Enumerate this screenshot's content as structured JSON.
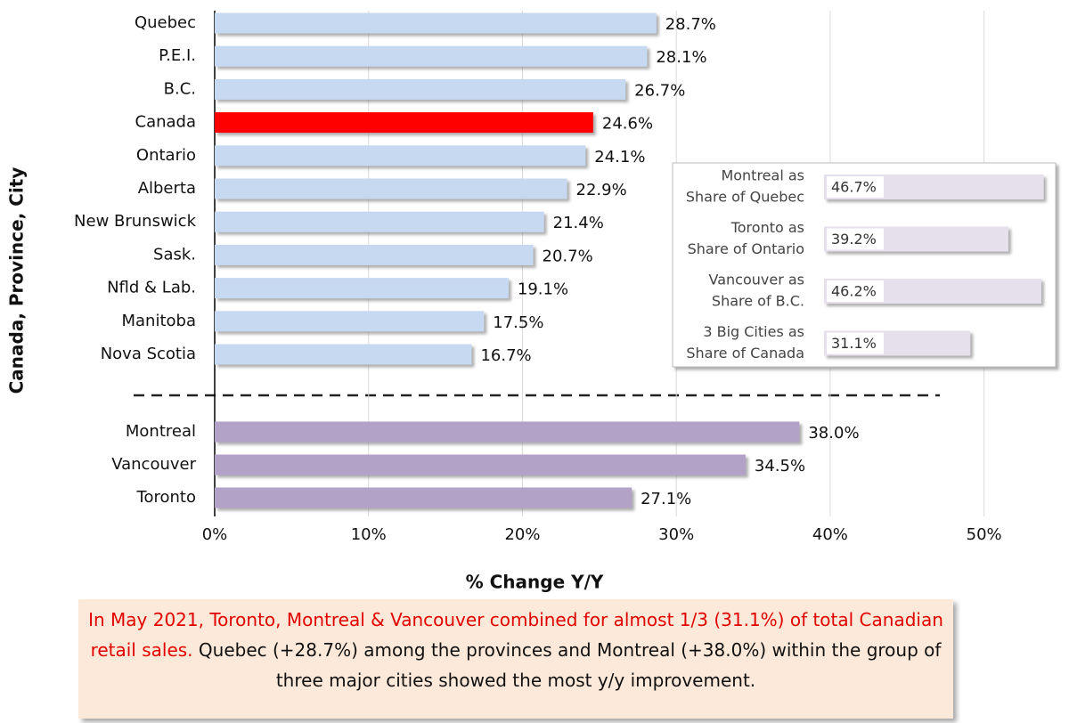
{
  "chart_data": [
    {
      "type": "bar",
      "y_label": "Canada, Province, City",
      "x_label": "% Change Y/Y",
      "categories": [
        "Quebec",
        "P.E.I.",
        "B.C.",
        "Canada",
        "Ontario",
        "Alberta",
        "New Brunswick",
        "Sask.",
        "Nfld & Lab.",
        "Manitoba",
        "Nova Scotia"
      ],
      "values": [
        28.7,
        28.1,
        26.7,
        24.6,
        24.1,
        22.9,
        21.4,
        20.7,
        19.1,
        17.5,
        16.7
      ],
      "value_labels": [
        "28.7%",
        "28.1%",
        "26.7%",
        "24.6%",
        "24.1%",
        "22.9%",
        "21.4%",
        "20.7%",
        "19.1%",
        "17.5%",
        "16.7%"
      ],
      "colors": [
        "#c6d9f1",
        "#c6d9f1",
        "#c6d9f1",
        "#ff0000",
        "#c6d9f1",
        "#c6d9f1",
        "#c6d9f1",
        "#c6d9f1",
        "#c6d9f1",
        "#c6d9f1",
        "#c6d9f1"
      ],
      "xlim": [
        0,
        55
      ],
      "xticks": [
        {
          "value": 0,
          "label": "0%"
        },
        {
          "value": 10,
          "label": "10%"
        },
        {
          "value": 20,
          "label": "20%"
        },
        {
          "value": 30,
          "label": "30%"
        },
        {
          "value": 40,
          "label": "40%"
        },
        {
          "value": 50,
          "label": "50%"
        }
      ],
      "grid": true
    },
    {
      "type": "bar",
      "categories": [
        "Montreal",
        "Vancouver",
        "Toronto"
      ],
      "values": [
        38.0,
        34.5,
        27.1
      ],
      "value_labels": [
        "38.0%",
        "34.5%",
        "27.1%"
      ],
      "color": "#b3a2c7",
      "xlim": [
        0,
        55
      ]
    },
    {
      "type": "bar",
      "categories": [
        [
          "Montreal as",
          "Share of Quebec"
        ],
        [
          "Toronto as",
          "Share of Ontario"
        ],
        [
          "Vancouver as",
          "Share of B.C."
        ],
        [
          "3 Big Cities as",
          "Share of Canada"
        ]
      ],
      "values": [
        46.7,
        39.2,
        46.2,
        31.1
      ],
      "value_labels": [
        "46.7%",
        "39.2%",
        "46.2%",
        "31.1%"
      ],
      "color": "#e6e0ec",
      "xlim": [
        0,
        50
      ]
    }
  ],
  "note": {
    "highlight": "In May 2021, Toronto, Montreal & Vancouver combined for almost 1/3 (31.1%) of total Canadian retail sales.",
    "text": "Quebec (+28.7%) among the provinces and Montreal (+38.0%) within the group of three major cities showed the most y/y improvement."
  }
}
